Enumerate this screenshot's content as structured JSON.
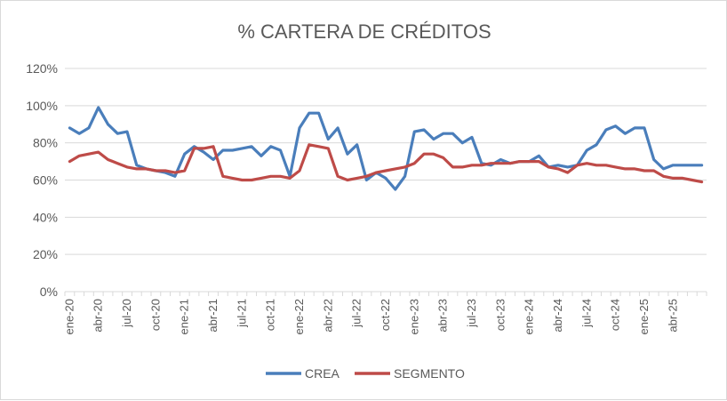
{
  "chart_data": {
    "type": "line",
    "title": "% CARTERA DE CRÉDITOS",
    "xlabel": "",
    "ylabel": "",
    "ylim": [
      0,
      120
    ],
    "yticks": [
      "0%",
      "20%",
      "40%",
      "60%",
      "80%",
      "100%",
      "120%"
    ],
    "grid": true,
    "legend_position": "bottom",
    "x_labels": [
      "ene-20",
      "abr-20",
      "jul-20",
      "oct-20",
      "ene-21",
      "abr-21",
      "jul-21",
      "oct-21",
      "ene-22",
      "abr-22",
      "jul-22",
      "oct-22",
      "ene-23",
      "abr-23",
      "jul-23",
      "oct-23",
      "ene-24",
      "abr-24",
      "jul-24",
      "oct-24",
      "ene-25",
      "abr-25"
    ],
    "x_label_every": 3,
    "series": [
      {
        "name": "CREA",
        "color": "#4a7ebb",
        "values": [
          88,
          85,
          88,
          99,
          90,
          85,
          86,
          68,
          66,
          65,
          64,
          62,
          74,
          78,
          75,
          71,
          76,
          76,
          77,
          78,
          73,
          78,
          76,
          62,
          88,
          96,
          96,
          82,
          88,
          74,
          79,
          60,
          64,
          61,
          55,
          62,
          86,
          87,
          82,
          85,
          85,
          80,
          83,
          69,
          68,
          71,
          69,
          70,
          70,
          73,
          67,
          68,
          67,
          68,
          76,
          79,
          87,
          89,
          85,
          88,
          88,
          71,
          66,
          68,
          68,
          68,
          68
        ]
      },
      {
        "name": "SEGMENTO",
        "color": "#be4b48",
        "values": [
          70,
          73,
          74,
          75,
          71,
          69,
          67,
          66,
          66,
          65,
          65,
          64,
          65,
          77,
          77,
          78,
          62,
          61,
          60,
          60,
          61,
          62,
          62,
          61,
          65,
          79,
          78,
          77,
          62,
          60,
          61,
          62,
          64,
          65,
          66,
          67,
          69,
          74,
          74,
          72,
          67,
          67,
          68,
          68,
          69,
          69,
          69,
          70,
          70,
          70,
          67,
          66,
          64,
          68,
          69,
          68,
          68,
          67,
          66,
          66,
          65,
          65,
          62,
          61,
          61,
          60,
          59
        ]
      }
    ]
  }
}
